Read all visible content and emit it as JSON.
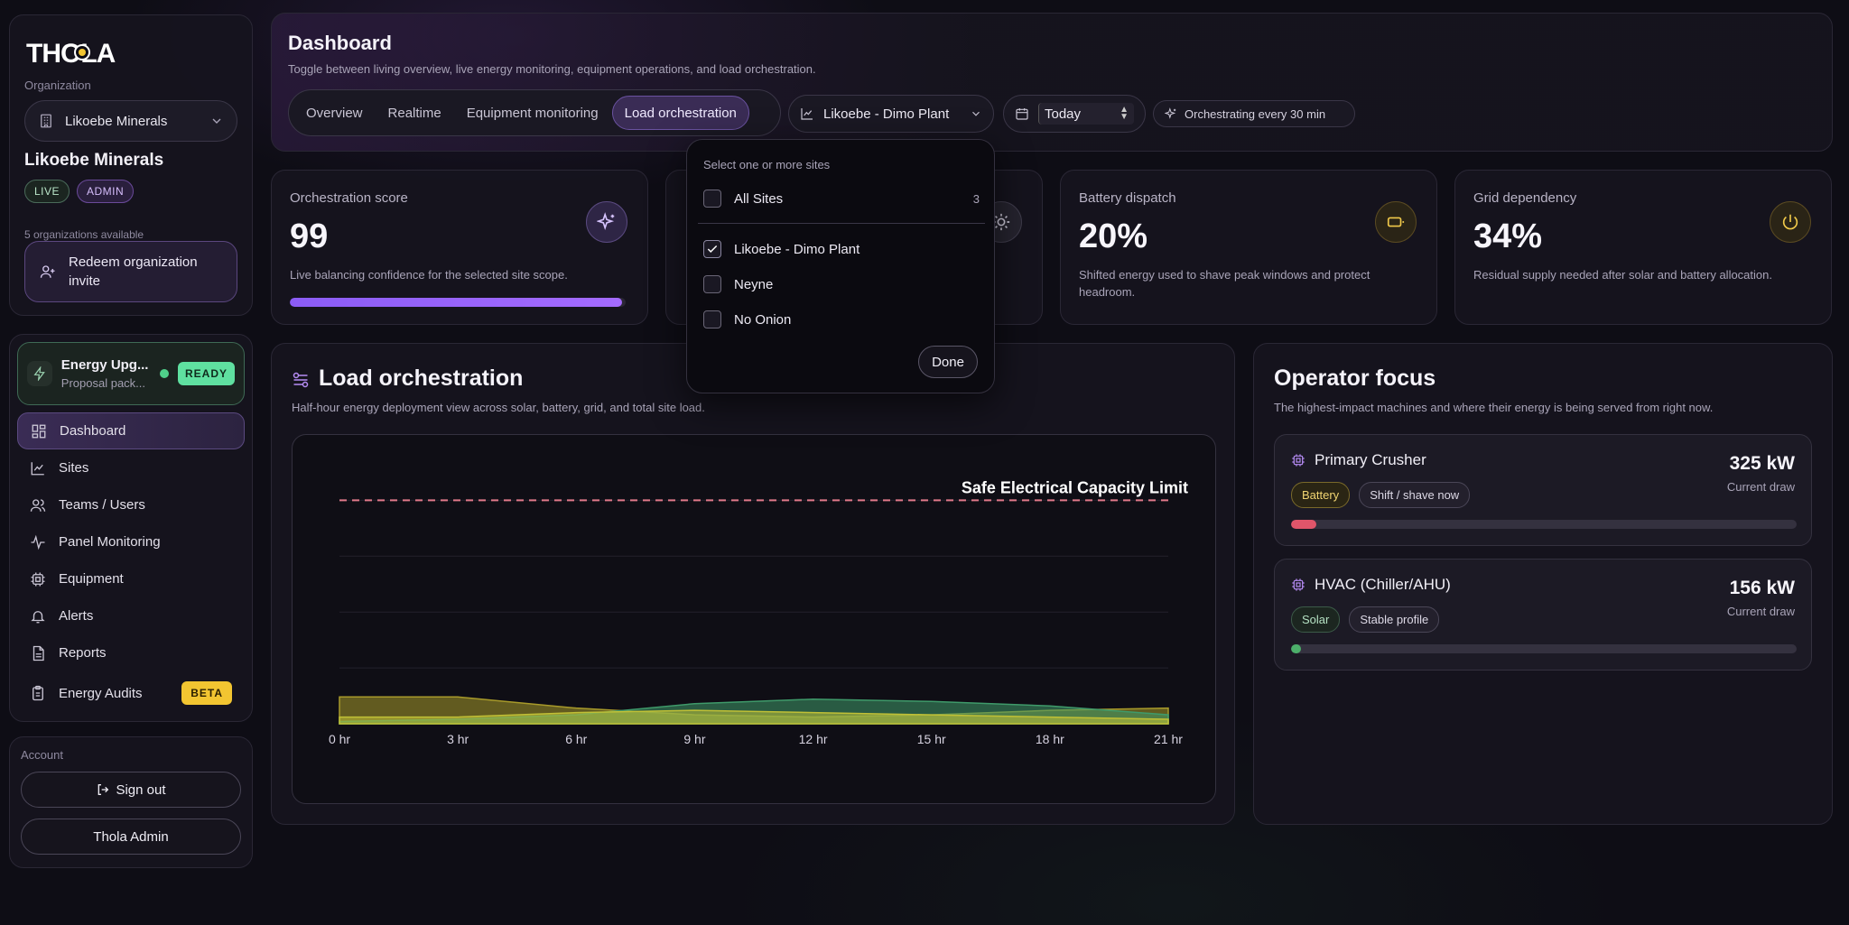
{
  "brand": {
    "logo_text": "THOLA"
  },
  "org": {
    "section_label": "Organization",
    "selected": "Likoebe Minerals",
    "name": "Likoebe Minerals",
    "badge_live": "LIVE",
    "badge_admin": "ADMIN",
    "count_text": "5 organizations available",
    "redeem_label": "Redeem organization invite"
  },
  "upgrade": {
    "title": "Energy Upg...",
    "subtitle": "Proposal pack...",
    "status": "READY"
  },
  "nav": {
    "items": [
      {
        "label": "Dashboard",
        "icon": "dashboard-icon"
      },
      {
        "label": "Sites",
        "icon": "chart-icon"
      },
      {
        "label": "Teams / Users",
        "icon": "users-icon"
      },
      {
        "label": "Panel Monitoring",
        "icon": "activity-icon"
      },
      {
        "label": "Equipment",
        "icon": "cpu-icon"
      },
      {
        "label": "Alerts",
        "icon": "bell-icon"
      },
      {
        "label": "Reports",
        "icon": "file-icon"
      },
      {
        "label": "Energy Audits",
        "icon": "clipboard-icon",
        "badge": "BETA"
      }
    ]
  },
  "account": {
    "label": "Account",
    "sign_out": "Sign out",
    "admin_name": "Thola Admin"
  },
  "header": {
    "title": "Dashboard",
    "subtitle": "Toggle between living overview, live energy monitoring, equipment operations, and load orchestration.",
    "tabs": [
      "Overview",
      "Realtime",
      "Equipment monitoring",
      "Load orchestration"
    ],
    "active_tab": "Load orchestration",
    "site_select": "Likoebe - Dimo Plant",
    "date_select": "Today",
    "orchestration_chip": "Orchestrating every 30 min"
  },
  "kpis": [
    {
      "label": "Orchestration score",
      "value": "99",
      "desc": "Live balancing confidence for the selected site scope.",
      "progress": 0.99,
      "icon": "sparkles-icon"
    },
    {
      "label": "",
      "value": "",
      "desc": "",
      "icon": "sun-icon"
    },
    {
      "label": "Battery dispatch",
      "value": "20%",
      "desc": "Shifted energy used to shave peak windows and protect headroom.",
      "icon": "battery-icon"
    },
    {
      "label": "Grid dependency",
      "value": "34%",
      "desc": "Residual supply needed after solar and battery allocation.",
      "icon": "power-icon"
    }
  ],
  "load": {
    "title": "Load orchestration",
    "subtitle": "Half-hour energy deployment view across solar, battery, grid, and total site load."
  },
  "chart_data": {
    "type": "area",
    "x": [
      "0 hr",
      "3 hr",
      "6 hr",
      "9 hr",
      "12 hr",
      "15 hr",
      "18 hr",
      "21 hr"
    ],
    "annotation": "Safe Electrical Capacity Limit",
    "capacity_limit": 1.0,
    "ylim": [
      0,
      1.05
    ],
    "grid": true,
    "series": [
      {
        "values": [
          0.12,
          0.12,
          0.07,
          0.04,
          0.03,
          0.04,
          0.06,
          0.07
        ],
        "color": "#a89a2a"
      },
      {
        "values": [
          0.01,
          0.02,
          0.04,
          0.09,
          0.11,
          0.1,
          0.08,
          0.04
        ],
        "color": "#3f9a6a"
      },
      {
        "values": [
          0.03,
          0.03,
          0.05,
          0.06,
          0.05,
          0.04,
          0.03,
          0.02
        ],
        "color": "#c0c036"
      }
    ]
  },
  "focus": {
    "title": "Operator focus",
    "subtitle": "The highest-impact machines and where their energy is being served from right now.",
    "machines": [
      {
        "name": "Primary Crusher",
        "kw": "325 kW",
        "caption": "Current draw",
        "tags": [
          "Battery",
          "Shift / shave now"
        ],
        "load": 0.05,
        "bar_color": "#e0556a"
      },
      {
        "name": "HVAC (Chiller/AHU)",
        "kw": "156 kW",
        "caption": "Current draw",
        "tags": [
          "Solar",
          "Stable profile"
        ],
        "load": 0.02,
        "bar_color": "#4caf6a"
      }
    ]
  },
  "dropdown": {
    "heading": "Select one or more sites",
    "all_label": "All Sites",
    "all_count": "3",
    "sites": [
      {
        "label": "Likoebe - Dimo Plant",
        "checked": true
      },
      {
        "label": "Neyne",
        "checked": false
      },
      {
        "label": "No Onion",
        "checked": false
      }
    ],
    "done_label": "Done"
  }
}
